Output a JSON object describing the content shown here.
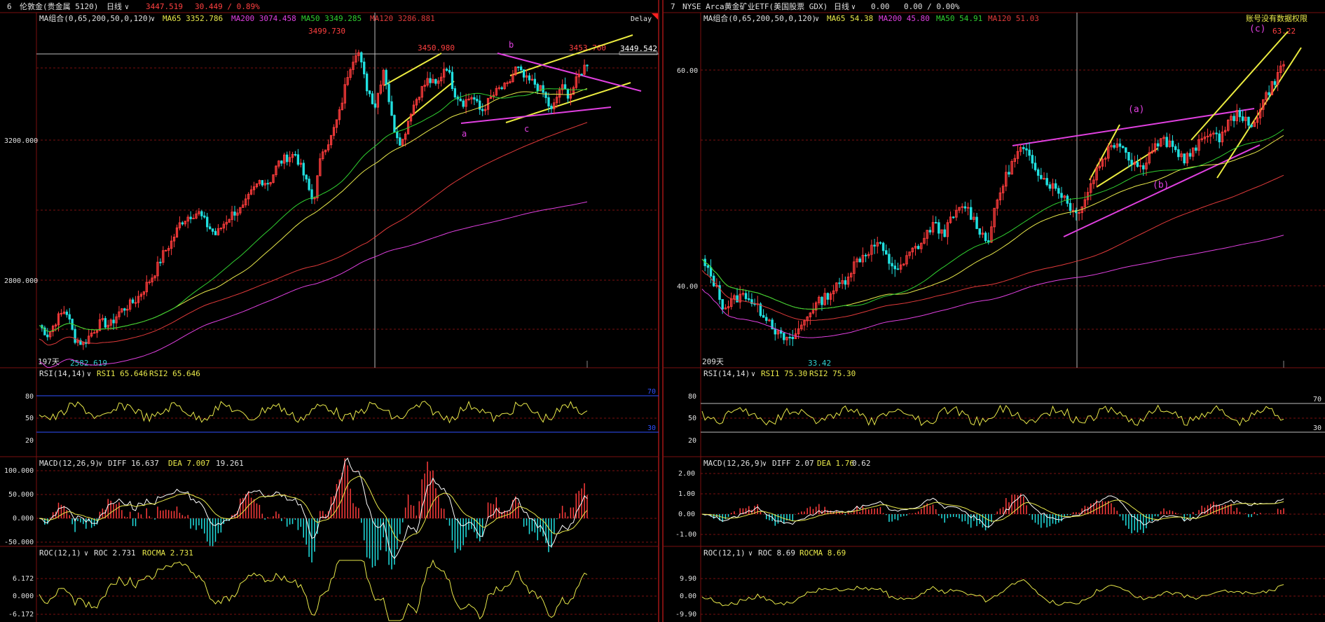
{
  "left": {
    "header": {
      "index": "6",
      "title": "伦敦金(贵金属 5120)",
      "period": "日线",
      "price": "3447.519",
      "change": "30.449 / 0.89%"
    },
    "ma_legend": {
      "name": "MA组合(0,65,200,50,0,120)",
      "items": [
        {
          "label": "MA65 3352.786",
          "color": "#e8e84a"
        },
        {
          "label": "MA200 3074.458",
          "color": "#e040e0"
        },
        {
          "label": "MA50 3349.285",
          "color": "#30d030"
        },
        {
          "label": "MA120 3286.881",
          "color": "#e03a3a"
        }
      ]
    },
    "delay": "Delay",
    "price_ticks": [
      "3200.000",
      "2800.000"
    ],
    "annotations": {
      "high": "3499.730",
      "peak_b_left": "3450.980",
      "last_high": "3453.760",
      "current_price": "3449.542",
      "low": "2582.619",
      "days": "197天",
      "wave_a": "a",
      "wave_b": "b",
      "wave_c": "c"
    },
    "rsi": {
      "name": "RSI(14,14)",
      "v1": "RSI1 65.646",
      "v2": "RSI2 65.646",
      "ticks": [
        "80",
        "50",
        "20"
      ],
      "upper": "70",
      "lower": "30"
    },
    "macd": {
      "name": "MACD(12,26,9)",
      "diff": "DIFF 16.637",
      "dea": "DEA 7.007",
      "macd": "19.261",
      "ticks": [
        "100.000",
        "50.000",
        "0.000",
        "-50.000"
      ]
    },
    "roc": {
      "name": "ROC(12,1)",
      "roc": "ROC 2.731",
      "rocma": "ROCMA 2.731",
      "ticks": [
        "6.172",
        "0.000",
        "-6.172"
      ]
    }
  },
  "right": {
    "header": {
      "index": "7",
      "title": "NYSE Arca黄金矿业ETF(美国股票 GDX)",
      "period": "日线",
      "price": "0.00",
      "change": "0.00 / 0.00%"
    },
    "ma_legend": {
      "name": "MA组合(0,65,200,50,0,120)",
      "items": [
        {
          "label": "MA65 54.38",
          "color": "#e8e84a"
        },
        {
          "label": "MA200 45.80",
          "color": "#e040e0"
        },
        {
          "label": "MA50 54.91",
          "color": "#30d030"
        },
        {
          "label": "MA120 51.03",
          "color": "#e03a3a"
        }
      ]
    },
    "notice": "账号没有数据权限",
    "price_ticks": [
      "60.00",
      "40.00"
    ],
    "annotations": {
      "last_high": "63.22",
      "low": "33.42",
      "days": "209天",
      "wave_a": "(a)",
      "wave_b": "(b)",
      "wave_c": "(c)"
    },
    "rsi": {
      "name": "RSI(14,14)",
      "v1": "RSI1 75.30",
      "v2": "RSI2 75.30",
      "ticks": [
        "80",
        "50",
        "20"
      ],
      "upper": "70",
      "lower": "30"
    },
    "macd": {
      "name": "MACD(12,26,9)",
      "diff": "DIFF 2.07",
      "dea": "DEA 1.76",
      "macd": "0.62",
      "ticks": [
        "2.00",
        "1.00",
        "0.00",
        "-1.00"
      ]
    },
    "roc": {
      "name": "ROC(12,1)",
      "roc": "ROC 8.69",
      "rocma": "ROCMA 8.69",
      "ticks": [
        "9.90",
        "0.00",
        "-9.90"
      ]
    }
  },
  "chart_data": [
    {
      "type": "candlestick",
      "title": "伦敦金(贵金属 5120) 日线",
      "ylim": [
        2520,
        3560
      ],
      "price_path": [
        2640,
        2610,
        2660,
        2690,
        2600,
        2582.619,
        2620,
        2650,
        2640,
        2680,
        2700,
        2720,
        2760,
        2800,
        2860,
        2900,
        2960,
        2980,
        2990,
        2950,
        2920,
        2960,
        2990,
        3000,
        3050,
        3090,
        3080,
        3140,
        3160,
        3170,
        3100,
        3020,
        3180,
        3220,
        3300,
        3430,
        3499.73,
        3380,
        3320,
        3440,
        3260,
        3200,
        3300,
        3360,
        3400,
        3380,
        3450.98,
        3360,
        3330,
        3350,
        3300,
        3340,
        3370,
        3380,
        3440,
        3400,
        3390,
        3360,
        3300,
        3380,
        3350,
        3410,
        3453.76
      ],
      "moving_averages": [
        "MA65",
        "MA200",
        "MA50",
        "MA120"
      ],
      "last_price": 3447.519,
      "rsi": 65.646,
      "macd": {
        "diff": 16.637,
        "dea": 7.007,
        "macd": 19.261
      },
      "roc": {
        "roc": 2.731,
        "rocma": 2.731
      }
    },
    {
      "type": "candlestick",
      "title": "NYSE Arca黄金矿业ETF(美国股票 GDX) 日线",
      "ylim": [
        31,
        67
      ],
      "price_path": [
        42,
        40,
        37,
        38,
        38.5,
        37,
        36,
        34,
        33.42,
        35,
        37,
        38,
        39,
        40,
        42,
        43,
        44,
        42,
        41,
        43,
        44,
        46,
        45,
        47,
        48,
        46,
        44,
        49,
        52,
        54,
        53,
        51,
        50,
        49,
        47,
        49,
        52,
        54,
        55,
        53,
        52,
        54,
        55,
        54,
        53,
        54,
        56,
        55,
        57,
        58,
        56,
        59,
        61,
        63.22
      ],
      "moving_averages": [
        "MA65",
        "MA200",
        "MA50",
        "MA120"
      ],
      "rsi": 75.3,
      "macd": {
        "diff": 2.07,
        "dea": 1.76,
        "macd": 0.62
      },
      "roc": {
        "roc": 8.69,
        "rocma": 8.69
      }
    }
  ]
}
